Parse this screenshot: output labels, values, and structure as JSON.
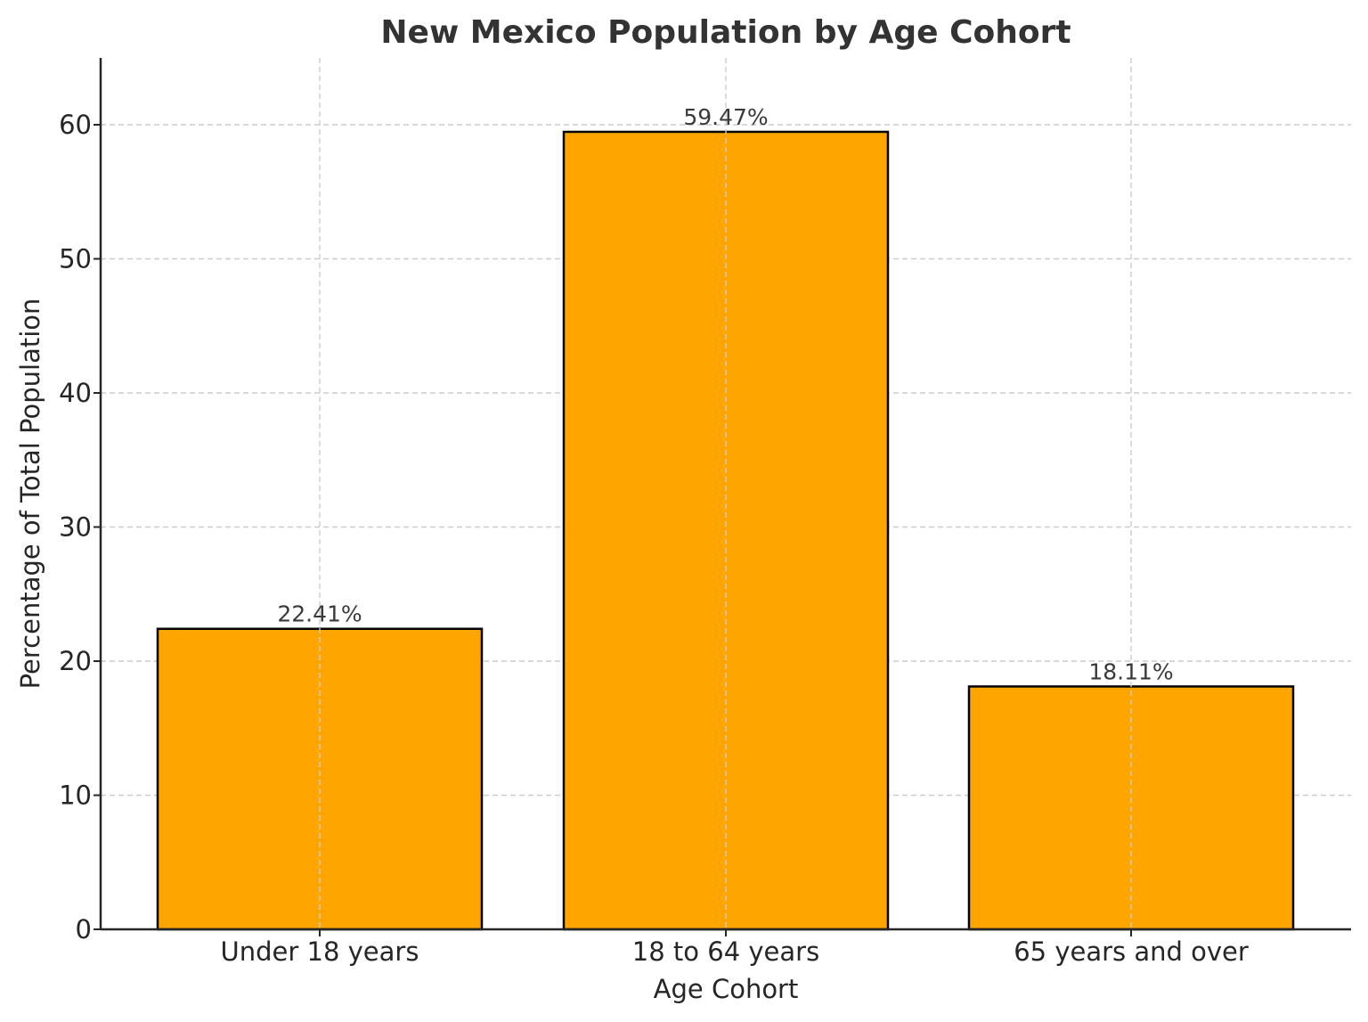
{
  "chart_data": {
    "type": "bar",
    "title": "New Mexico Population by Age Cohort",
    "xlabel": "Age Cohort",
    "ylabel": "Percentage of Total Population",
    "categories": [
      "Under 18 years",
      "18 to 64 years",
      "65 years and over"
    ],
    "values": [
      22.41,
      59.47,
      18.11
    ],
    "value_labels": [
      "22.41%",
      "59.47%",
      "18.11%"
    ],
    "ylim": [
      0,
      65
    ],
    "yticks": [
      0,
      10,
      20,
      30,
      40,
      50,
      60
    ],
    "grid": true,
    "legend": null,
    "colors": {
      "bar_fill": "#FFA500",
      "bar_edge": "#000000",
      "grid": "#cccccc",
      "text": "#333333"
    }
  }
}
